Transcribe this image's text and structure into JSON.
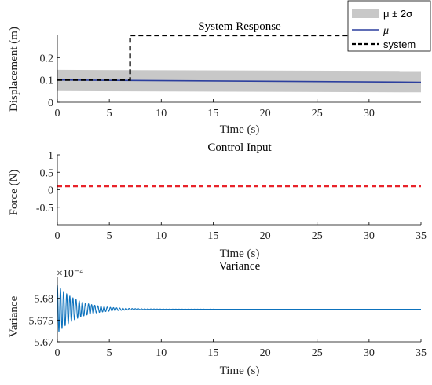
{
  "chart_data": [
    {
      "type": "line",
      "title": "System Response",
      "xlabel": "Time (s)",
      "ylabel": "Displacement (m)",
      "xlim": [
        0,
        35
      ],
      "ylim": [
        0,
        0.3
      ],
      "xticks": [
        "0",
        "5",
        "10",
        "15",
        "20",
        "25",
        "30"
      ],
      "yticks": [
        "0",
        "0.1",
        "0.2"
      ],
      "legend_position": "top-right",
      "series": [
        {
          "name": "μ ± 2σ",
          "style": "band",
          "color": "#c8c8c8",
          "x": [
            0,
            35
          ],
          "lower": [
            0.05,
            0.045
          ],
          "upper": [
            0.145,
            0.14
          ]
        },
        {
          "name": "μ",
          "style": "solid",
          "color": "#2c3f9e",
          "x": [
            0,
            35
          ],
          "y": [
            0.1,
            0.09
          ]
        },
        {
          "name": "system",
          "style": "dashed",
          "color": "#000000",
          "x": [
            0,
            7,
            7,
            35
          ],
          "y": [
            0.1,
            0.1,
            0.3,
            0.3
          ]
        }
      ]
    },
    {
      "type": "line",
      "title": "Control Input",
      "xlabel": "Time (s)",
      "ylabel": "Force (N)",
      "xlim": [
        0,
        35
      ],
      "ylim": [
        -1,
        1
      ],
      "xticks": [
        "0",
        "5",
        "10",
        "15",
        "20",
        "25",
        "30",
        "35"
      ],
      "yticks": [
        "-0.5",
        "0",
        "0.5",
        "1"
      ],
      "series": [
        {
          "style": "dashed",
          "color": "#e8232a",
          "x": [
            0,
            35
          ],
          "y": [
            0.1,
            0.1
          ]
        }
      ]
    },
    {
      "type": "line",
      "title": "Variance",
      "xlabel": "Time (s)",
      "ylabel": "Variance",
      "exponent_label": "×10⁻⁴",
      "xlim": [
        0,
        35
      ],
      "ylim": [
        5.67,
        5.685
      ],
      "xticks": [
        "0",
        "5",
        "10",
        "15",
        "20",
        "25",
        "30",
        "35"
      ],
      "yticks": [
        "5.67",
        "5.675",
        "5.68"
      ],
      "series": [
        {
          "style": "oscillation",
          "color": "#0d72bd",
          "steady_value": 5.6775,
          "initial_amplitude": 0.0055,
          "decay_time": 2.0,
          "oscillation_period": 0.3,
          "duration": 35
        }
      ]
    }
  ]
}
